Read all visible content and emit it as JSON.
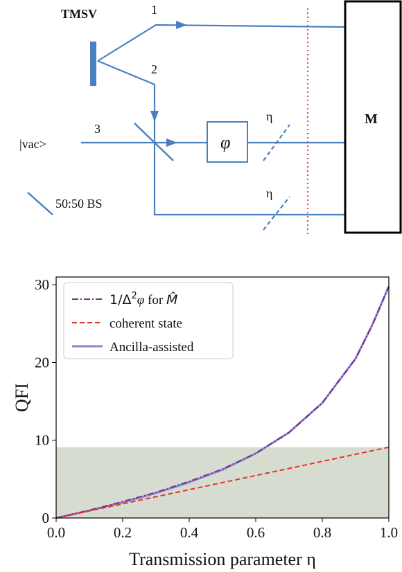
{
  "diagram": {
    "source_label": "TMSV",
    "mode_labels": [
      "1",
      "2",
      "3"
    ],
    "vacuum_label": "|vac>",
    "phase_label": "φ",
    "loss_label": "η",
    "measurement_label": "M",
    "legend_bs_label": "50:50 BS",
    "colors": {
      "beam": "#4a7fc1",
      "cutline": "#d9534f"
    }
  },
  "chart_data": {
    "type": "line",
    "xlabel": "Transmission parameter η",
    "ylabel": "QFI",
    "xlim": [
      0,
      1
    ],
    "ylim": [
      0,
      31
    ],
    "xticks": [
      "0.0",
      "0.2",
      "0.4",
      "0.6",
      "0.8",
      "1.0"
    ],
    "yticks": [
      "0",
      "10",
      "20",
      "30"
    ],
    "shaded_region": {
      "y_max": 9.1,
      "color": "#d6ddd0"
    },
    "legend_position": "top-left",
    "legend": {
      "inv_label_main": "1/Δ",
      "inv_label_sup": "2",
      "inv_label_phi": "φ",
      "inv_label_for": " for ",
      "inv_label_M": "M̂",
      "coherent_label": "coherent state",
      "ancilla_label": "Ancilla-assisted"
    },
    "series": [
      {
        "name": "Ancilla-assisted",
        "color": "#8a86d0",
        "style": "solid",
        "x": [
          0,
          0.1,
          0.2,
          0.3,
          0.4,
          0.5,
          0.6,
          0.7,
          0.8,
          0.9,
          0.95,
          1.0
        ],
        "y": [
          0,
          0.95,
          2.0,
          3.2,
          4.6,
          6.2,
          8.3,
          11.0,
          14.8,
          20.5,
          24.8,
          29.8
        ]
      },
      {
        "name": "1/Δ²φ for M̂",
        "color": "#7b2d8e",
        "style": "dashdot",
        "x": [
          0,
          0.1,
          0.2,
          0.3,
          0.4,
          0.5,
          0.6,
          0.7,
          0.8,
          0.9,
          0.95,
          1.0
        ],
        "y": [
          0,
          1.0,
          2.1,
          3.3,
          4.7,
          6.3,
          8.3,
          11.0,
          14.8,
          20.5,
          24.8,
          29.8
        ]
      },
      {
        "name": "coherent state",
        "color": "#e8302a",
        "style": "dashed",
        "x": [
          0,
          1
        ],
        "y": [
          0,
          9.1
        ]
      }
    ]
  }
}
